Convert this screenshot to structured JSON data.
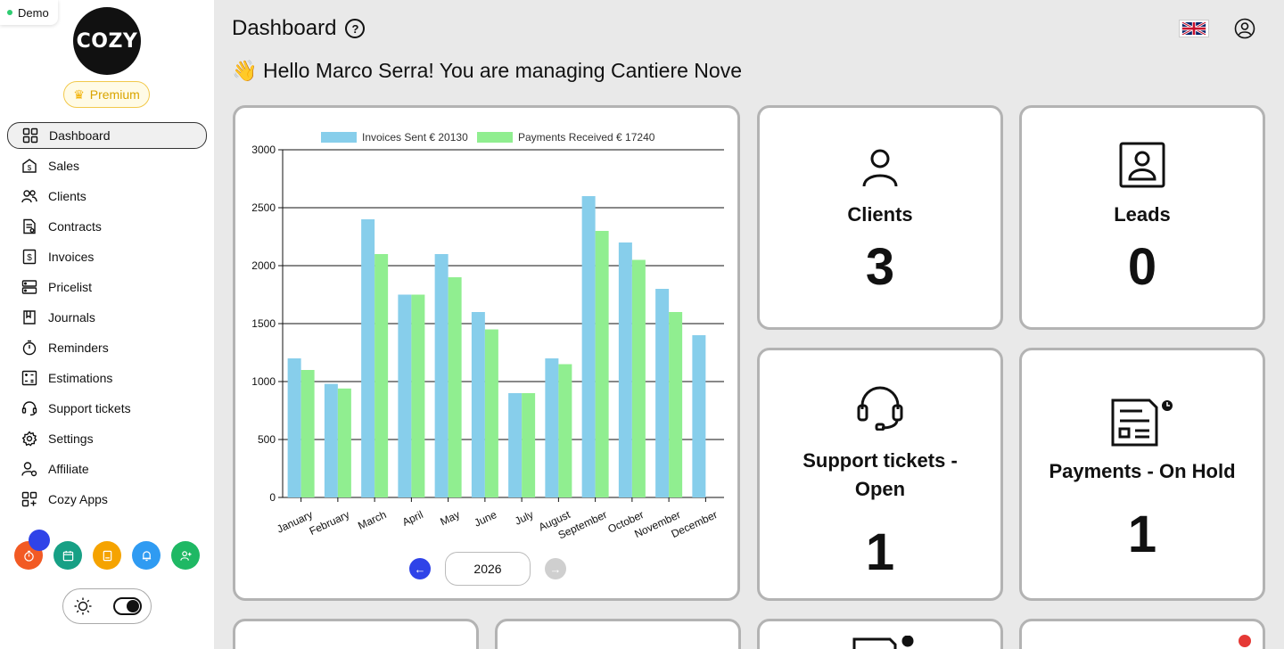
{
  "app": {
    "demo_label": "Demo",
    "logo_text": "COZY",
    "premium_label": "Premium"
  },
  "sidebar": {
    "items": [
      {
        "label": "Dashboard",
        "icon": "grid-icon",
        "active": true
      },
      {
        "label": "Sales",
        "icon": "sales-icon"
      },
      {
        "label": "Clients",
        "icon": "users-icon"
      },
      {
        "label": "Contracts",
        "icon": "contract-icon"
      },
      {
        "label": "Invoices",
        "icon": "invoice-icon"
      },
      {
        "label": "Pricelist",
        "icon": "pricelist-icon"
      },
      {
        "label": "Journals",
        "icon": "journal-icon"
      },
      {
        "label": "Reminders",
        "icon": "timer-icon"
      },
      {
        "label": "Estimations",
        "icon": "estimation-icon"
      },
      {
        "label": "Support tickets",
        "icon": "headset-icon"
      },
      {
        "label": "Settings",
        "icon": "gear-icon"
      },
      {
        "label": "Affiliate",
        "icon": "affiliate-icon"
      },
      {
        "label": "Cozy Apps",
        "icon": "apps-icon"
      }
    ],
    "quick_actions": [
      {
        "name": "timer",
        "color": "#f25a24"
      },
      {
        "name": "calendar",
        "color": "#17a085"
      },
      {
        "name": "notes",
        "color": "#f5a300"
      },
      {
        "name": "bell",
        "color": "#2f9bf2"
      },
      {
        "name": "add-user",
        "color": "#1fb864"
      }
    ]
  },
  "header": {
    "title": "Dashboard",
    "greeting": "👋 Hello Marco Serra! You are managing Cantiere Nove",
    "language": "en-GB"
  },
  "stats": {
    "clients": {
      "label": "Clients",
      "value": "3"
    },
    "leads": {
      "label": "Leads",
      "value": "0"
    },
    "support": {
      "label": "Support tickets - Open",
      "value": "1"
    },
    "payments": {
      "label": "Payments - On Hold",
      "value": "1"
    }
  },
  "chart_data": {
    "type": "bar",
    "categories": [
      "January",
      "February",
      "March",
      "April",
      "May",
      "June",
      "July",
      "August",
      "September",
      "October",
      "November",
      "December"
    ],
    "series": [
      {
        "name": "Invoices Sent € 20130",
        "color": "#87ceeb",
        "values": [
          1200,
          980,
          2400,
          1750,
          2100,
          1600,
          900,
          1200,
          2600,
          2200,
          1800,
          1400
        ]
      },
      {
        "name": "Payments Received € 17240",
        "color": "#90ee90",
        "values": [
          1100,
          940,
          2100,
          1750,
          1900,
          1450,
          900,
          1150,
          2300,
          2050,
          1600,
          0
        ]
      }
    ],
    "ylim": [
      0,
      3000
    ],
    "yticks": [
      0,
      500,
      1000,
      1500,
      2000,
      2500,
      3000
    ],
    "grid": true,
    "legend": "top"
  },
  "pager": {
    "year": "2026"
  },
  "colors": {
    "accent": "#2f43e8",
    "card_border": "#b3b3b3"
  }
}
